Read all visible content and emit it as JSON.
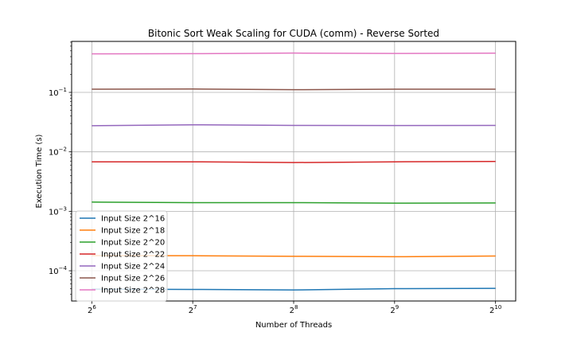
{
  "chart_data": {
    "type": "line",
    "title": "Bitonic Sort Weak Scaling for CUDA (comm) - Reverse Sorted",
    "xlabel": "Number of Threads",
    "ylabel": "Execution Time (s)",
    "x_scale": "log2",
    "y_scale": "log10",
    "x": [
      64,
      128,
      256,
      512,
      1024
    ],
    "x_tick_labels": [
      {
        "base": "2",
        "exp": "6"
      },
      {
        "base": "2",
        "exp": "7"
      },
      {
        "base": "2",
        "exp": "8"
      },
      {
        "base": "2",
        "exp": "9"
      },
      {
        "base": "2",
        "exp": "10"
      }
    ],
    "y_tick_labels": [
      {
        "value": 0.0001,
        "base": "10",
        "exp": "−4"
      },
      {
        "value": 0.001,
        "base": "10",
        "exp": "−3"
      },
      {
        "value": 0.01,
        "base": "10",
        "exp": "−2"
      },
      {
        "value": 0.1,
        "base": "10",
        "exp": "−1"
      }
    ],
    "ylim": [
      3.1e-05,
      0.72
    ],
    "grid": true,
    "legend_position": "lower-left",
    "series": [
      {
        "name": "Input Size 2^16",
        "color": "#1f77b4",
        "values": [
          4.9e-05,
          4.85e-05,
          4.75e-05,
          5e-05,
          5.05e-05
        ]
      },
      {
        "name": "Input Size 2^18",
        "color": "#ff7f0e",
        "values": [
          0.00018,
          0.000179,
          0.000175,
          0.000172,
          0.000177
        ]
      },
      {
        "name": "Input Size 2^20",
        "color": "#2ca02c",
        "values": [
          0.00143,
          0.0014,
          0.0014,
          0.00137,
          0.00138
        ]
      },
      {
        "name": "Input Size 2^22",
        "color": "#d62728",
        "values": [
          0.0068,
          0.0068,
          0.0066,
          0.0068,
          0.0069
        ]
      },
      {
        "name": "Input Size 2^24",
        "color": "#9467bd",
        "values": [
          0.0275,
          0.0285,
          0.0278,
          0.0277,
          0.0278
        ]
      },
      {
        "name": "Input Size 2^26",
        "color": "#8c564b",
        "values": [
          0.113,
          0.114,
          0.111,
          0.113,
          0.113
        ]
      },
      {
        "name": "Input Size 2^28",
        "color": "#e377c2",
        "values": [
          0.445,
          0.448,
          0.458,
          0.452,
          0.456
        ]
      }
    ]
  }
}
